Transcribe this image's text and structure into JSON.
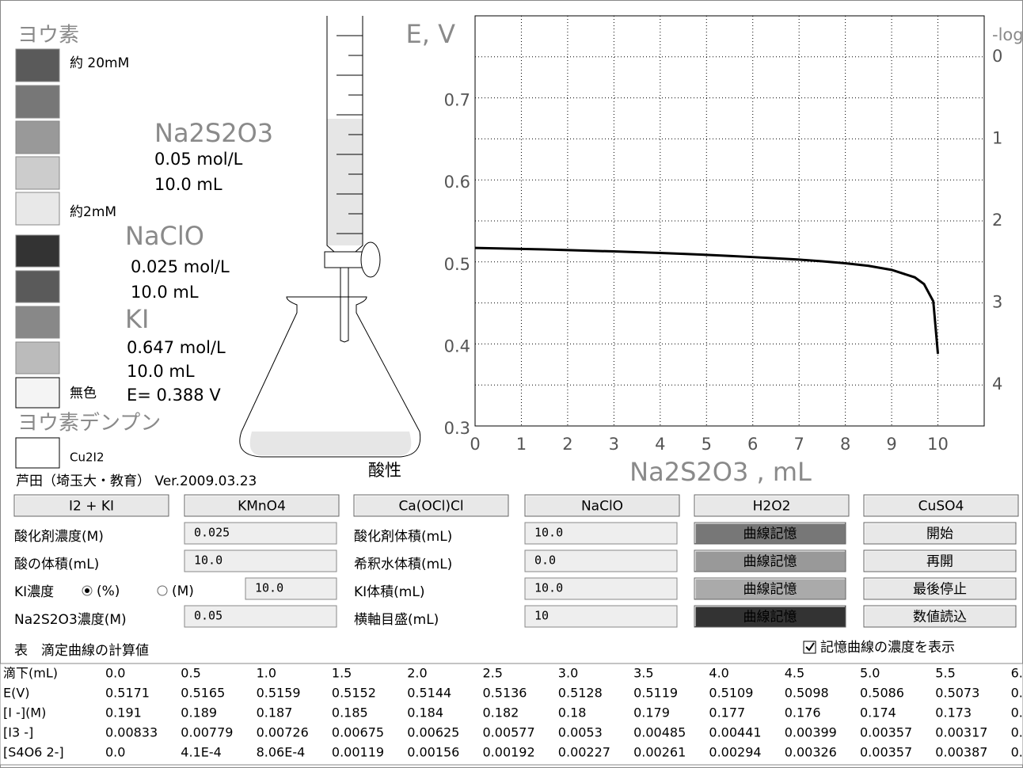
{
  "legend": {
    "title": "ヨウ素",
    "top_label": "約 20mM",
    "bottom_label": "約2mM",
    "colorless": "無色",
    "starch": "ヨウ素デンプン",
    "cu": "Cu2I2"
  },
  "titrant": {
    "name": "Na2S2O3",
    "conc": "0.05 mol/L",
    "volume": "10.0 mL"
  },
  "oxidant": {
    "name": "NaClO",
    "conc": "0.025 mol/L",
    "volume": "10.0 mL"
  },
  "ki": {
    "name": "KI",
    "conc": "0.647 mol/L",
    "volume": "10.0 mL"
  },
  "potential": "E= 0.388 V",
  "acid": "酸性",
  "credit": "芦田（埼玉大・教育） Ver.2009.03.23",
  "chart_data": {
    "type": "line",
    "y_label": "E, V",
    "x_label": "Na2S2O3 , mL",
    "y2_label": "-log",
    "x": [
      0,
      0.5,
      1,
      1.5,
      2,
      2.5,
      3,
      3.5,
      4,
      4.5,
      5,
      5.5,
      6,
      6.5,
      7,
      7.5,
      8,
      8.5,
      9,
      9.5,
      9.7,
      9.9,
      10
    ],
    "values": [
      0.5171,
      0.5165,
      0.5159,
      0.5152,
      0.5144,
      0.5136,
      0.5128,
      0.5119,
      0.5109,
      0.5098,
      0.5086,
      0.5073,
      0.5059,
      0.5044,
      0.5028,
      0.5008,
      0.4984,
      0.4952,
      0.4903,
      0.4812,
      0.473,
      0.452,
      0.388
    ],
    "color": "#000000",
    "xlim": [
      0,
      11
    ],
    "xticks": [
      0,
      1,
      2,
      3,
      4,
      5,
      6,
      7,
      8,
      9,
      10
    ],
    "ylim": [
      0.3,
      0.8
    ],
    "yticks": [
      0.3,
      0.4,
      0.5,
      0.6,
      0.7
    ],
    "ygrid": [
      0.35,
      0.45,
      0.55,
      0.65,
      0.75
    ],
    "y2lim": [
      4.5,
      -0.5
    ],
    "y2ticks": [
      0,
      1,
      2,
      3,
      4
    ],
    "grid": true
  },
  "buttons": [
    "I2 + KI",
    "KMnO4",
    "Ca(OCl)Cl",
    "NaClO",
    "H2O2",
    "CuSO4"
  ],
  "left_fields": [
    {
      "label": "酸化剤濃度(M)",
      "value": "0.025"
    },
    {
      "label": "酸の体積(mL)",
      "value": "10.0"
    },
    {
      "label": "KI濃度",
      "value": "10.0"
    },
    {
      "label": "Na2S2O3濃度(M)",
      "value": "0.05"
    }
  ],
  "ki_options": [
    "(%)",
    "(M)"
  ],
  "right_fields": [
    {
      "label": "酸化剤体積(mL)",
      "value": "10.0"
    },
    {
      "label": "希釈水体積(mL)",
      "value": "0.0"
    },
    {
      "label": "KI体積(mL)",
      "value": "10.0"
    },
    {
      "label": "横軸目盛(mL)",
      "value": "10"
    }
  ],
  "curve_buttons": [
    "曲線記憶",
    "曲線記憶",
    "曲線記憶",
    "曲線記憶"
  ],
  "control_buttons": [
    "開始",
    "再開",
    "最後停止",
    "数値読込"
  ],
  "table": {
    "title": "表　滴定曲線の計算値",
    "checkbox": "記憶曲線の濃度を表示",
    "rows": [
      [
        "滴下(mL)",
        "0.0",
        "0.5",
        "1.0",
        "1.5",
        "2.0",
        "2.5",
        "3.0",
        "3.5",
        "4.0",
        "4.5",
        "5.0",
        "5.5",
        "6."
      ],
      [
        "E(V)",
        "0.5171",
        "0.5165",
        "0.5159",
        "0.5152",
        "0.5144",
        "0.5136",
        "0.5128",
        "0.5119",
        "0.5109",
        "0.5098",
        "0.5086",
        "0.5073",
        "0."
      ],
      [
        "[I -](M)",
        "0.191",
        "0.189",
        "0.187",
        "0.185",
        "0.184",
        "0.182",
        "0.18",
        "0.179",
        "0.177",
        "0.176",
        "0.174",
        "0.173",
        "0."
      ],
      [
        "[I3 -]",
        "0.00833",
        "0.00779",
        "0.00726",
        "0.00675",
        "0.00625",
        "0.00577",
        "0.0053",
        "0.00485",
        "0.00441",
        "0.00399",
        "0.00357",
        "0.00317",
        "0."
      ],
      [
        "[S4O6 2-]",
        "0.0",
        "4.1E-4",
        "8.06E-4",
        "0.00119",
        "0.00156",
        "0.00192",
        "0.00227",
        "0.00261",
        "0.00294",
        "0.00326",
        "0.00357",
        "0.00387",
        "0."
      ]
    ]
  }
}
